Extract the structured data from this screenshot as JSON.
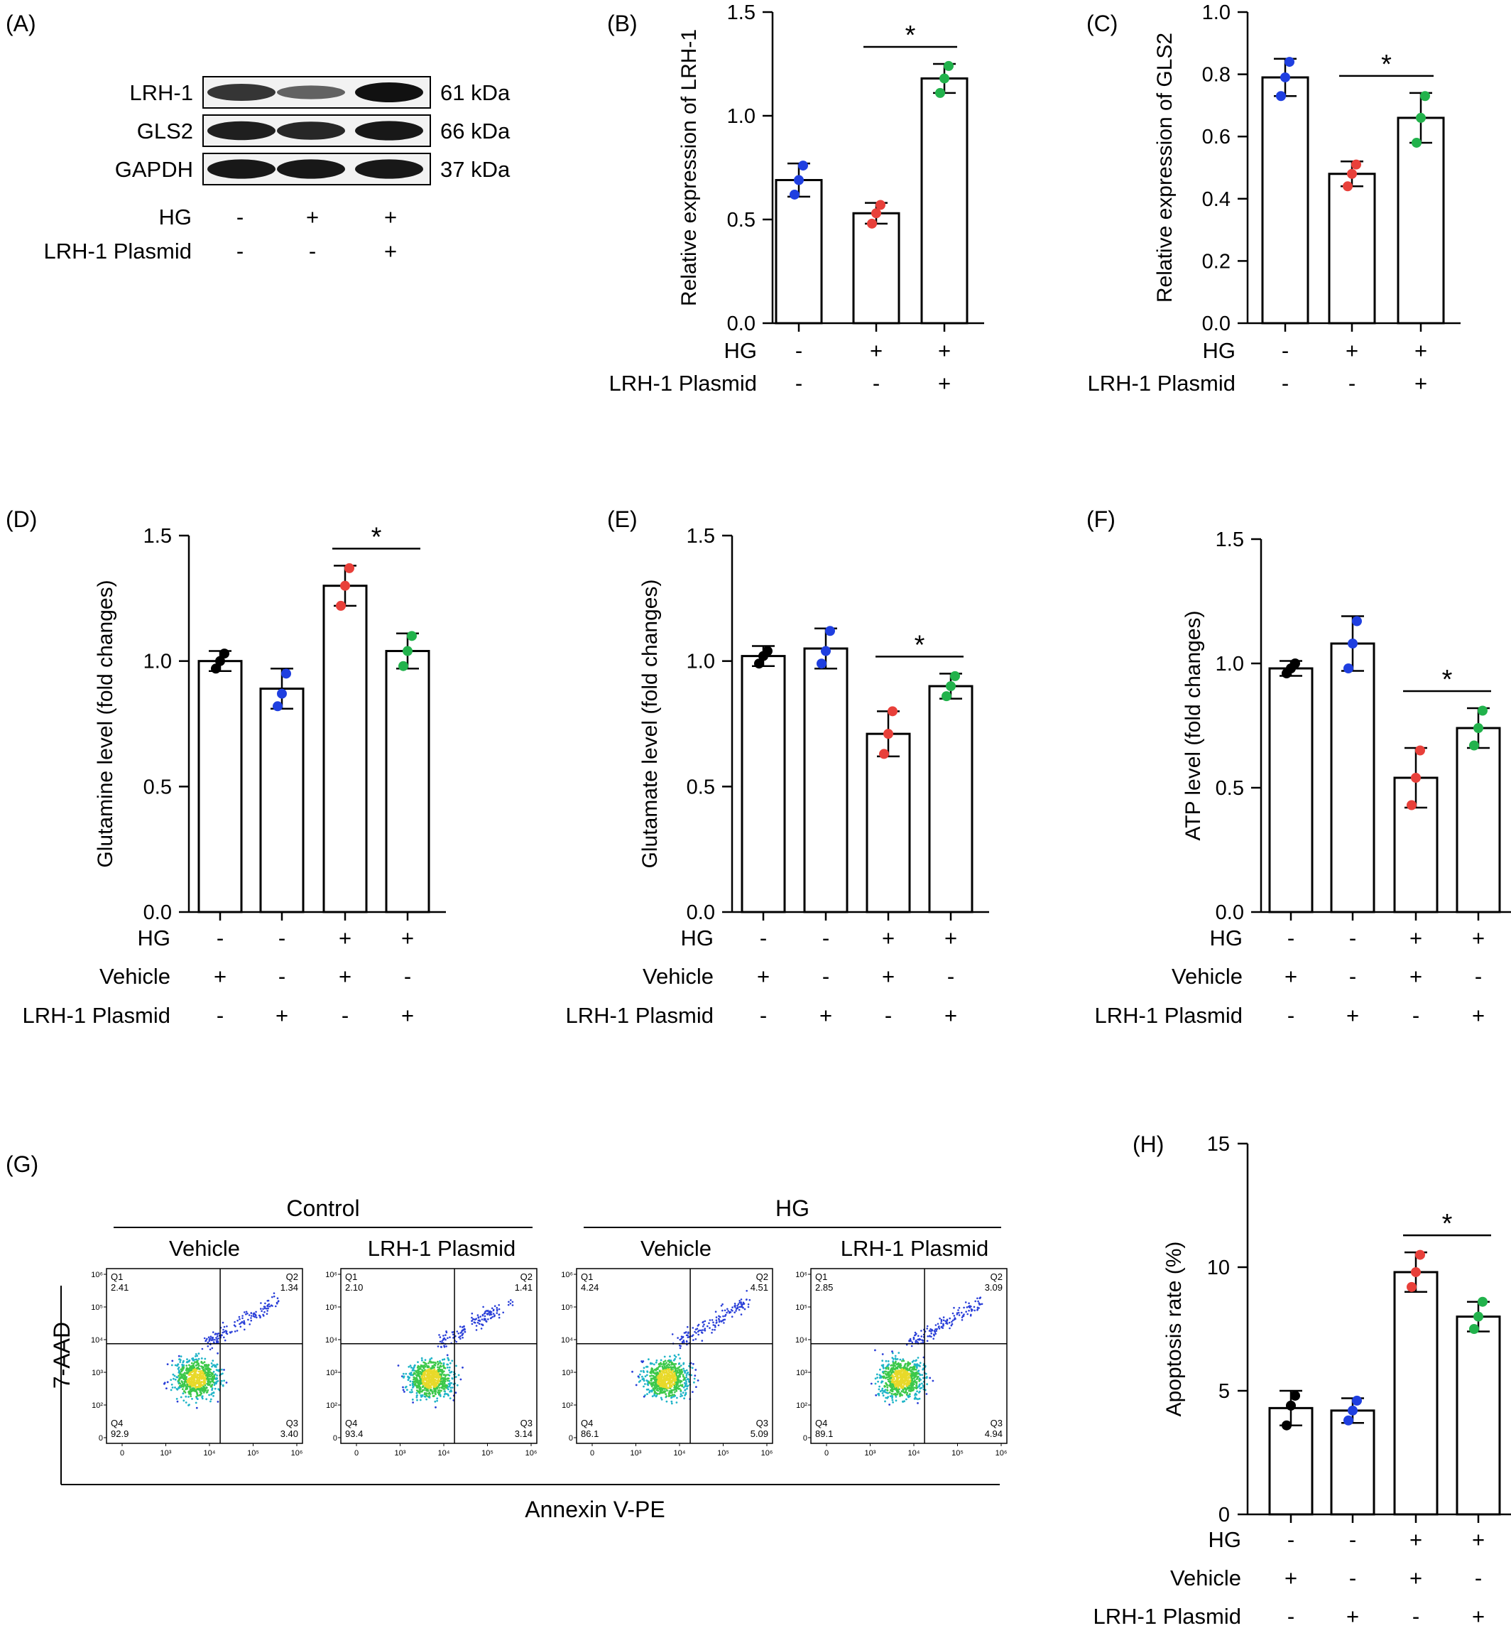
{
  "panel_letters": [
    "(A)",
    "(B)",
    "(C)",
    "(D)",
    "(E)",
    "(F)",
    "(G)",
    "(H)"
  ],
  "colors": {
    "blue": "#1f3fe0",
    "red": "#e8403a",
    "green": "#22b24c",
    "black": "#000000"
  },
  "western_blot": {
    "bands": [
      {
        "label": "LRH-1",
        "mw": "61 kDa",
        "intensity": [
          0.75,
          0.45,
          1.0
        ]
      },
      {
        "label": "GLS2",
        "mw": "66 kDa",
        "intensity": [
          0.9,
          0.85,
          0.95
        ]
      },
      {
        "label": "GAPDH",
        "mw": "37 kDa",
        "intensity": [
          0.95,
          0.95,
          0.95
        ]
      }
    ],
    "conditions": [
      {
        "label": "HG",
        "values": [
          "-",
          "+",
          "+"
        ]
      },
      {
        "label": "LRH-1 Plasmid",
        "values": [
          "-",
          "-",
          "+"
        ]
      }
    ]
  },
  "flow": {
    "x_label": "Annexin V-PE",
    "y_label": "7-AAD",
    "groups": [
      {
        "label": "Control",
        "subs": [
          "Vehicle",
          "LRH-1 Plasmid"
        ]
      },
      {
        "label": "HG",
        "subs": [
          "Vehicle",
          "LRH-1 Plasmid"
        ]
      }
    ],
    "plots": [
      {
        "q1": "2.41",
        "q2": "1.34",
        "q3": "3.40",
        "q4": "92.9"
      },
      {
        "q1": "2.10",
        "q2": "1.41",
        "q3": "3.14",
        "q4": "93.4"
      },
      {
        "q1": "4.24",
        "q2": "4.51",
        "q3": "5.09",
        "q4": "86.1"
      },
      {
        "q1": "2.85",
        "q2": "3.09",
        "q3": "4.94",
        "q4": "89.1"
      }
    ],
    "quadrant_labels": [
      "Q1",
      "Q2",
      "Q3",
      "Q4"
    ],
    "x_ticks": [
      "0",
      "10³",
      "10⁴",
      "10⁵",
      "10⁶"
    ],
    "y_ticks": [
      "0",
      "10²",
      "10³",
      "10⁴",
      "10⁵",
      "10⁶"
    ]
  },
  "chart_data": [
    {
      "panel": "(B)",
      "type": "bar",
      "ylabel": "Relative expression of LRH-1",
      "ylim": [
        0,
        1.5
      ],
      "yticks": [
        "0.0",
        "0.5",
        "1.0",
        "1.5"
      ],
      "values": [
        0.69,
        0.53,
        1.18
      ],
      "errors": [
        0.08,
        0.05,
        0.07
      ],
      "points": [
        [
          0.62,
          0.69,
          0.76
        ],
        [
          0.48,
          0.53,
          0.57
        ],
        [
          1.11,
          1.18,
          1.24
        ]
      ],
      "dot_colors": [
        "blue",
        "red",
        "green"
      ],
      "sig": {
        "from": 1,
        "to": 2,
        "label": "*"
      },
      "conditions": [
        {
          "label": "HG",
          "values": [
            "-",
            "+",
            "+"
          ]
        },
        {
          "label": "LRH-1 Plasmid",
          "values": [
            "-",
            "-",
            "+"
          ]
        }
      ]
    },
    {
      "panel": "(C)",
      "type": "bar",
      "ylabel": "Relative expression of GLS2",
      "ylim": [
        0,
        1.0
      ],
      "yticks": [
        "0.0",
        "0.2",
        "0.4",
        "0.6",
        "0.8",
        "1.0"
      ],
      "values": [
        0.79,
        0.48,
        0.66
      ],
      "errors": [
        0.06,
        0.04,
        0.08
      ],
      "points": [
        [
          0.73,
          0.79,
          0.84
        ],
        [
          0.44,
          0.48,
          0.51
        ],
        [
          0.58,
          0.66,
          0.73
        ]
      ],
      "dot_colors": [
        "blue",
        "red",
        "green"
      ],
      "sig": {
        "from": 1,
        "to": 2,
        "label": "*"
      },
      "conditions": [
        {
          "label": "HG",
          "values": [
            "-",
            "+",
            "+"
          ]
        },
        {
          "label": "LRH-1 Plasmid",
          "values": [
            "-",
            "-",
            "+"
          ]
        }
      ]
    },
    {
      "panel": "(D)",
      "type": "bar",
      "ylabel": "Glutamine level (fold changes)",
      "ylim": [
        0,
        1.5
      ],
      "yticks": [
        "0.0",
        "0.5",
        "1.0",
        "1.5"
      ],
      "values": [
        1.0,
        0.89,
        1.3,
        1.04
      ],
      "errors": [
        0.04,
        0.08,
        0.08,
        0.07
      ],
      "points": [
        [
          0.97,
          1.0,
          1.03
        ],
        [
          0.82,
          0.87,
          0.95
        ],
        [
          1.22,
          1.3,
          1.37
        ],
        [
          0.98,
          1.04,
          1.1
        ]
      ],
      "dot_colors": [
        "black",
        "blue",
        "red",
        "green"
      ],
      "sig": {
        "from": 2,
        "to": 3,
        "label": "*"
      },
      "conditions": [
        {
          "label": "HG",
          "values": [
            "-",
            "-",
            "+",
            "+"
          ]
        },
        {
          "label": "Vehicle",
          "values": [
            "+",
            "-",
            "+",
            "-"
          ]
        },
        {
          "label": "LRH-1 Plasmid",
          "values": [
            "-",
            "+",
            "-",
            "+"
          ]
        }
      ]
    },
    {
      "panel": "(E)",
      "type": "bar",
      "ylabel": "Glutamate level (fold changes)",
      "ylim": [
        0,
        1.5
      ],
      "yticks": [
        "0.0",
        "0.5",
        "1.0",
        "1.5"
      ],
      "values": [
        1.02,
        1.05,
        0.71,
        0.9
      ],
      "errors": [
        0.04,
        0.08,
        0.09,
        0.05
      ],
      "points": [
        [
          0.99,
          1.02,
          1.04
        ],
        [
          0.99,
          1.04,
          1.12
        ],
        [
          0.63,
          0.71,
          0.8
        ],
        [
          0.86,
          0.9,
          0.94
        ]
      ],
      "dot_colors": [
        "black",
        "blue",
        "red",
        "green"
      ],
      "sig": {
        "from": 2,
        "to": 3,
        "label": "*"
      },
      "conditions": [
        {
          "label": "HG",
          "values": [
            "-",
            "-",
            "+",
            "+"
          ]
        },
        {
          "label": "Vehicle",
          "values": [
            "+",
            "-",
            "+",
            "-"
          ]
        },
        {
          "label": "LRH-1 Plasmid",
          "values": [
            "-",
            "+",
            "-",
            "+"
          ]
        }
      ]
    },
    {
      "panel": "(F)",
      "type": "bar",
      "ylabel": "ATP level (fold changes)",
      "ylim": [
        0,
        1.5
      ],
      "yticks": [
        "0.0",
        "0.5",
        "1.0",
        "1.5"
      ],
      "values": [
        0.98,
        1.08,
        0.54,
        0.74
      ],
      "errors": [
        0.03,
        0.11,
        0.12,
        0.08
      ],
      "points": [
        [
          0.96,
          0.98,
          1.0
        ],
        [
          0.98,
          1.08,
          1.17
        ],
        [
          0.43,
          0.54,
          0.65
        ],
        [
          0.67,
          0.74,
          0.81
        ]
      ],
      "dot_colors": [
        "black",
        "blue",
        "red",
        "green"
      ],
      "sig": {
        "from": 2,
        "to": 3,
        "label": "*"
      },
      "conditions": [
        {
          "label": "HG",
          "values": [
            "-",
            "-",
            "+",
            "+"
          ]
        },
        {
          "label": "Vehicle",
          "values": [
            "+",
            "-",
            "+",
            "-"
          ]
        },
        {
          "label": "LRH-1 Plasmid",
          "values": [
            "-",
            "+",
            "-",
            "+"
          ]
        }
      ]
    },
    {
      "panel": "(H)",
      "type": "bar",
      "ylabel": "Apoptosis rate (%)",
      "ylim": [
        0,
        15
      ],
      "yticks": [
        "0",
        "5",
        "10",
        "15"
      ],
      "values": [
        4.3,
        4.2,
        9.8,
        8.0
      ],
      "errors": [
        0.7,
        0.5,
        0.8,
        0.6
      ],
      "points": [
        [
          3.6,
          4.4,
          4.8
        ],
        [
          3.8,
          4.2,
          4.6
        ],
        [
          9.2,
          9.8,
          10.5
        ],
        [
          7.5,
          8.0,
          8.6
        ]
      ],
      "dot_colors": [
        "black",
        "blue",
        "red",
        "green"
      ],
      "sig": {
        "from": 2,
        "to": 3,
        "label": "*"
      },
      "conditions": [
        {
          "label": "HG",
          "values": [
            "-",
            "-",
            "+",
            "+"
          ]
        },
        {
          "label": "Vehicle",
          "values": [
            "+",
            "-",
            "+",
            "-"
          ]
        },
        {
          "label": "LRH-1 Plasmid",
          "values": [
            "-",
            "+",
            "-",
            "+"
          ]
        }
      ]
    }
  ]
}
